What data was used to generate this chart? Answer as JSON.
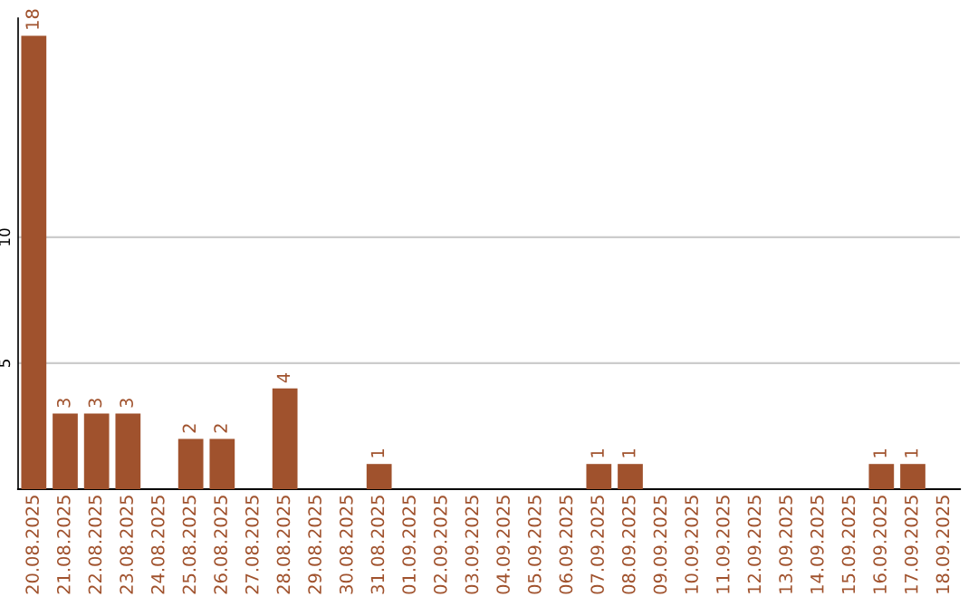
{
  "chart_data": {
    "type": "bar",
    "categories": [
      "20.08.2025",
      "21.08.2025",
      "22.08.2025",
      "23.08.2025",
      "24.08.2025",
      "25.08.2025",
      "26.08.2025",
      "27.08.2025",
      "28.08.2025",
      "29.08.2025",
      "30.08.2025",
      "31.08.2025",
      "01.09.2025",
      "02.09.2025",
      "03.09.2025",
      "04.09.2025",
      "05.09.2025",
      "06.09.2025",
      "07.09.2025",
      "08.09.2025",
      "09.09.2025",
      "10.09.2025",
      "11.09.2025",
      "12.09.2025",
      "13.09.2025",
      "14.09.2025",
      "15.09.2025",
      "16.09.2025",
      "17.09.2025",
      "18.09.2025"
    ],
    "values": [
      18,
      3,
      3,
      3,
      0,
      2,
      2,
      0,
      4,
      0,
      0,
      1,
      0,
      0,
      0,
      0,
      0,
      0,
      1,
      1,
      0,
      0,
      0,
      0,
      0,
      0,
      0,
      1,
      1,
      0
    ],
    "value_labels": [
      "18",
      "3",
      "3",
      "3",
      null,
      "2",
      "2",
      null,
      "4",
      null,
      null,
      "1",
      null,
      null,
      null,
      null,
      null,
      null,
      "1",
      "1",
      null,
      null,
      null,
      null,
      null,
      null,
      null,
      "1",
      "1",
      null
    ],
    "color": "#a0522d",
    "ylim": [
      0,
      18.7
    ],
    "yticks": [
      5,
      10
    ],
    "grid": "y",
    "legend": false
  }
}
